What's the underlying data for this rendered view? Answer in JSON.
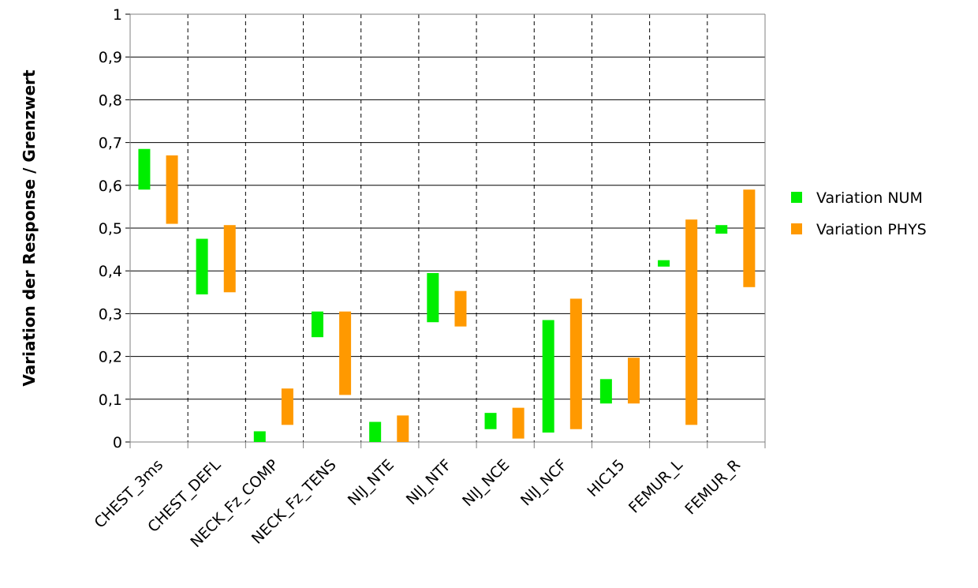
{
  "chart_data": {
    "type": "range_bar",
    "y_axis_label": "Variation der Response / Grenzwert",
    "categories": [
      "CHEST_3ms",
      "CHEST_DEFL",
      "NECK_Fz_COMP",
      "NECK_Fz_TENS",
      "NIJ_NTE",
      "NIJ_NTF",
      "NIJ_NCE",
      "NIJ_NCF",
      "HIC15",
      "FEMUR_L",
      "FEMUR_R"
    ],
    "series": [
      {
        "name": "Variation NUM",
        "color": "#00ee00",
        "values": [
          [
            0.59,
            0.685
          ],
          [
            0.345,
            0.475
          ],
          [
            0,
            0.025
          ],
          [
            0.245,
            0.305
          ],
          [
            0,
            0.047
          ],
          [
            0.28,
            0.395
          ],
          [
            0.03,
            0.068
          ],
          [
            0.022,
            0.285
          ],
          [
            0.09,
            0.147
          ],
          [
            0.41,
            0.425
          ],
          [
            0.487,
            0.507
          ]
        ]
      },
      {
        "name": "Variation PHYS",
        "color": "#ff9900",
        "values": [
          [
            0.51,
            0.67
          ],
          [
            0.35,
            0.507
          ],
          [
            0.04,
            0.125
          ],
          [
            0.11,
            0.305
          ],
          [
            0,
            0.062
          ],
          [
            0.27,
            0.353
          ],
          [
            0.008,
            0.08
          ],
          [
            0.03,
            0.335
          ],
          [
            0.09,
            0.197
          ],
          [
            0.04,
            0.52
          ],
          [
            0.362,
            0.59
          ]
        ]
      }
    ],
    "ylim": [
      0,
      1
    ],
    "yticks": [
      0,
      {
        "value": 0.1,
        "label": "0,1"
      },
      {
        "value": 0.2,
        "label": "0,2"
      },
      {
        "value": 0.3,
        "label": "0,3"
      },
      {
        "value": 0.4,
        "label": "0,4"
      },
      {
        "value": 0.5,
        "label": "0,5"
      },
      {
        "value": 0.6,
        "label": "0,6"
      },
      {
        "value": 0.7,
        "label": "0,7"
      },
      {
        "value": 0.8,
        "label": "0,8"
      },
      {
        "value": 0.9,
        "label": "0,9"
      },
      1
    ],
    "grid": true,
    "legend": "right"
  }
}
